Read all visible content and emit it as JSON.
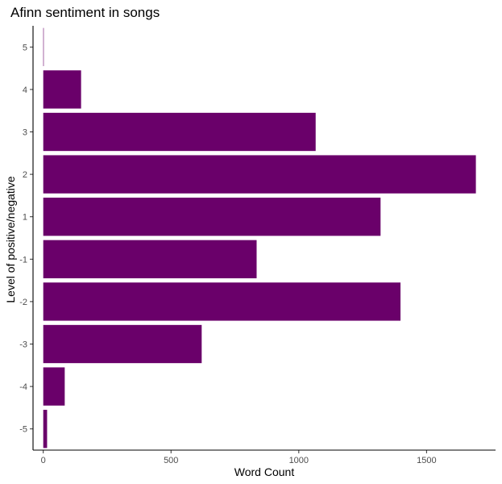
{
  "chart_data": {
    "type": "bar",
    "orientation": "horizontal",
    "title": "Afinn sentiment in songs",
    "xlabel": "Word Count",
    "ylabel": "Level of positive/negative",
    "categories": [
      "5",
      "4",
      "3",
      "2",
      "1",
      "-1",
      "-2",
      "-3",
      "-4",
      "-5"
    ],
    "values": [
      1,
      148,
      1066,
      1693,
      1320,
      835,
      1398,
      620,
      84,
      15
    ],
    "x_ticks": [
      0,
      500,
      1000,
      1500
    ],
    "xlim": [
      -40,
      1770
    ],
    "bar_color": "#6a006a",
    "grid": false
  }
}
